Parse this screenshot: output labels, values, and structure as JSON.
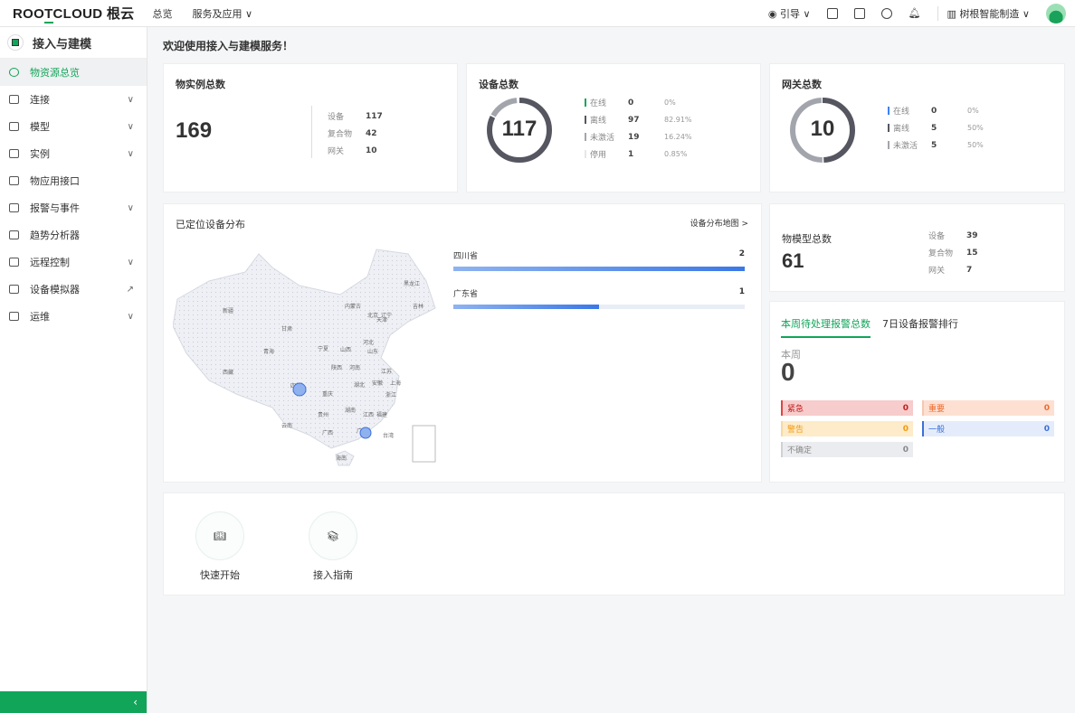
{
  "topbar": {
    "logo": "ROOTCLOUD 根云",
    "logo_a": "ROO",
    "logo_b": "T",
    "logo_c": "CLOUD 根云",
    "nav": [
      "总览",
      "服务及应用 ∨"
    ],
    "guide": "引导 ∨",
    "org": "树根智能制造 ∨"
  },
  "sidebar": {
    "title": "接入与建模",
    "items": [
      {
        "label": "物资源总览",
        "active": true
      },
      {
        "label": "连接",
        "chevron": true
      },
      {
        "label": "模型",
        "chevron": true
      },
      {
        "label": "实例",
        "chevron": true
      },
      {
        "label": "物应用接口"
      },
      {
        "label": "报警与事件",
        "chevron": true
      },
      {
        "label": "趋势分析器"
      },
      {
        "label": "远程控制",
        "chevron": true
      },
      {
        "label": "设备模拟器",
        "external": true
      },
      {
        "label": "运维",
        "chevron": true
      }
    ],
    "collapse": "‹"
  },
  "welcome": "欢迎使用接入与建模服务！",
  "instances": {
    "title": "物实例总数",
    "total": "169",
    "rows": [
      {
        "label": "设备",
        "value": "117"
      },
      {
        "label": "复合物",
        "value": "42"
      },
      {
        "label": "网关",
        "value": "10"
      }
    ]
  },
  "devices": {
    "title": "设备总数",
    "total": "117",
    "rows": [
      {
        "label": "在线",
        "value": "0",
        "pct": "0%",
        "color": "#11a55a"
      },
      {
        "label": "离线",
        "value": "97",
        "pct": "82.91%",
        "color": "#555660"
      },
      {
        "label": "未激活",
        "value": "19",
        "pct": "16.24%",
        "color": "#a3a5ad"
      },
      {
        "label": "停用",
        "value": "1",
        "pct": "0.85%",
        "color": "#e5e6e8"
      }
    ]
  },
  "gateways": {
    "title": "网关总数",
    "total": "10",
    "rows": [
      {
        "label": "在线",
        "value": "0",
        "pct": "0%",
        "color": "#3b82f6"
      },
      {
        "label": "离线",
        "value": "5",
        "pct": "50%",
        "color": "#555660"
      },
      {
        "label": "未激活",
        "value": "5",
        "pct": "50%",
        "color": "#a3a5ad"
      }
    ]
  },
  "map": {
    "title": "已定位设备分布",
    "link": "设备分布地图 >",
    "provinces": [
      {
        "name": "四川省",
        "value": "2",
        "fraction": 1.0
      },
      {
        "name": "广东省",
        "value": "1",
        "fraction": 0.5
      }
    ],
    "labels": [
      "黑龙江",
      "吉林",
      "辽宁",
      "新疆",
      "内蒙古",
      "北京",
      "天津",
      "甘肃",
      "青海",
      "宁夏",
      "山西",
      "河北",
      "山东",
      "西藏",
      "陕西",
      "河南",
      "江苏",
      "四川",
      "湖北",
      "安徽",
      "上海",
      "重庆",
      "浙江",
      "贵州",
      "湖南",
      "江西",
      "福建",
      "云南",
      "广西",
      "广东",
      "台湾",
      "海南"
    ]
  },
  "models": {
    "title": "物模型总数",
    "total": "61",
    "rows": [
      {
        "label": "设备",
        "value": "39"
      },
      {
        "label": "复合物",
        "value": "15"
      },
      {
        "label": "网关",
        "value": "7"
      }
    ]
  },
  "alarms": {
    "tabs": [
      "本周待处理报警总数",
      "7日设备报警排行"
    ],
    "period": "本周",
    "total": "0",
    "levels": [
      {
        "label": "紧急",
        "value": "0"
      },
      {
        "label": "重要",
        "value": "0"
      },
      {
        "label": "警告",
        "value": "0"
      },
      {
        "label": "一般",
        "value": "0"
      },
      {
        "label": "不确定",
        "value": "0"
      }
    ]
  },
  "quick": [
    {
      "label": "快速开始"
    },
    {
      "label": "接入指南"
    }
  ]
}
